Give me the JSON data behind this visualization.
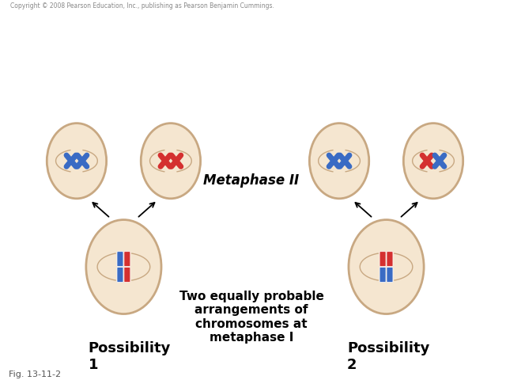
{
  "fig_label": "Fig. 13-11-2",
  "copyright": "Copyright © 2008 Pearson Education, Inc., publishing as Pearson Benjamin Cummings.",
  "title_pos1": "Possibility\n1",
  "title_pos2": "Possibility\n2",
  "text_center": "Two equally probable\narrangements of\nchromosomes at\nmetaphase I",
  "text_metaphase2": "Metaphase II",
  "bg_color": "#ffffff",
  "cell_fill": "#f5e6d0",
  "cell_edge": "#c8a882",
  "blue_chrom": "#3a6bc4",
  "red_chrom": "#d43030",
  "cell_lw": 2.0
}
